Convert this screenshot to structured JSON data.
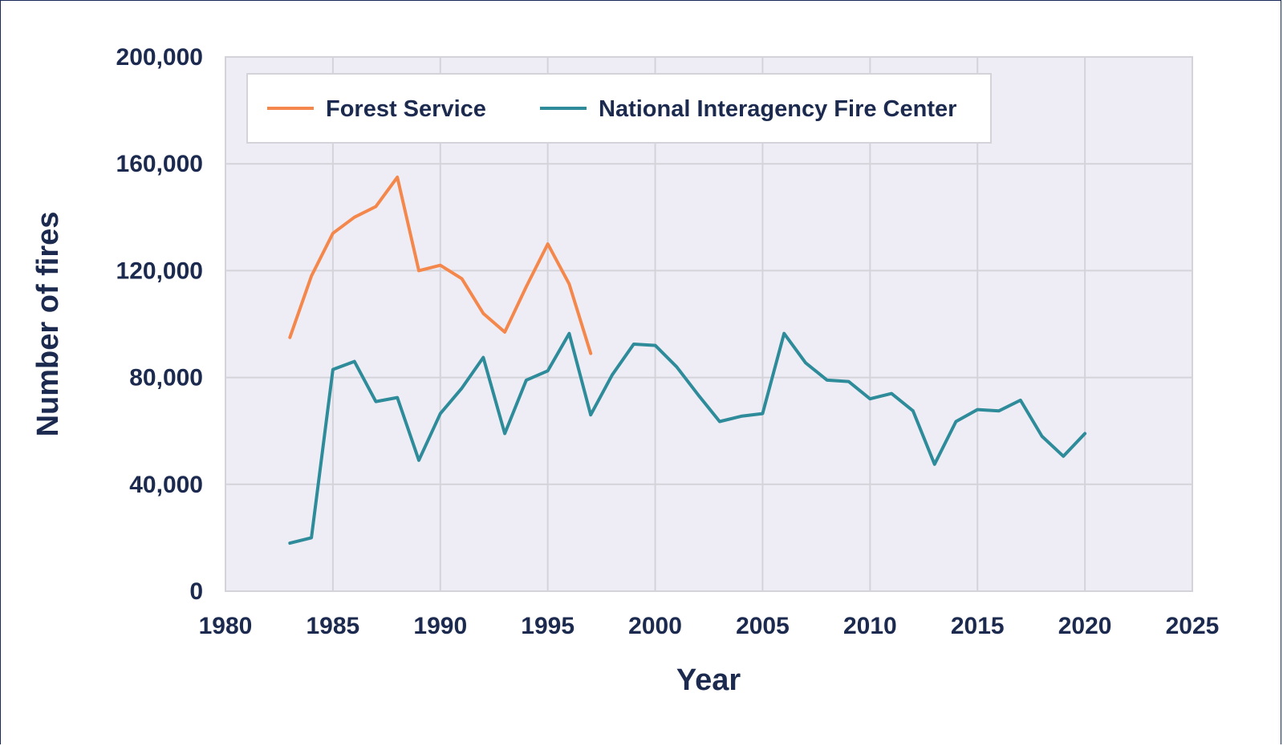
{
  "chart_data": {
    "type": "line",
    "title": "",
    "xlabel": "Year",
    "ylabel": "Number of fires",
    "xlim": [
      1980,
      2025
    ],
    "ylim": [
      0,
      200000
    ],
    "x_ticks": [
      "1980",
      "1985",
      "1990",
      "1995",
      "2000",
      "2005",
      "2010",
      "2015",
      "2020",
      "2025"
    ],
    "y_ticks": [
      "0",
      "40,000",
      "80,000",
      "120,000",
      "160,000",
      "200,000"
    ],
    "grid": true,
    "legend_position": "top",
    "series": [
      {
        "name": "Forest Service",
        "color": "#f4874b",
        "x": [
          1983,
          1984,
          1985,
          1986,
          1987,
          1988,
          1989,
          1990,
          1991,
          1992,
          1993,
          1994,
          1995,
          1996,
          1997
        ],
        "y": [
          95000,
          118000,
          134000,
          140000,
          144000,
          155000,
          120000,
          122000,
          117000,
          104000,
          97000,
          114000,
          130000,
          115000,
          89000
        ]
      },
      {
        "name": "National Interagency Fire Center",
        "color": "#2e8b9a",
        "x": [
          1983,
          1984,
          1985,
          1986,
          1987,
          1988,
          1989,
          1990,
          1991,
          1992,
          1993,
          1994,
          1995,
          1996,
          1997,
          1998,
          1999,
          2000,
          2001,
          2002,
          2003,
          2004,
          2005,
          2006,
          2007,
          2008,
          2009,
          2010,
          2011,
          2012,
          2013,
          2014,
          2015,
          2016,
          2017,
          2018,
          2019,
          2020
        ],
        "y": [
          18000,
          20000,
          83000,
          86000,
          71000,
          72500,
          49000,
          66500,
          76000,
          87500,
          59000,
          79000,
          82500,
          96500,
          66000,
          81000,
          92500,
          92000,
          84000,
          73500,
          63500,
          65500,
          66500,
          96500,
          85500,
          79000,
          78500,
          72000,
          74000,
          67500,
          47500,
          63500,
          68000,
          67500,
          71500,
          58000,
          50500,
          59000
        ]
      }
    ]
  }
}
